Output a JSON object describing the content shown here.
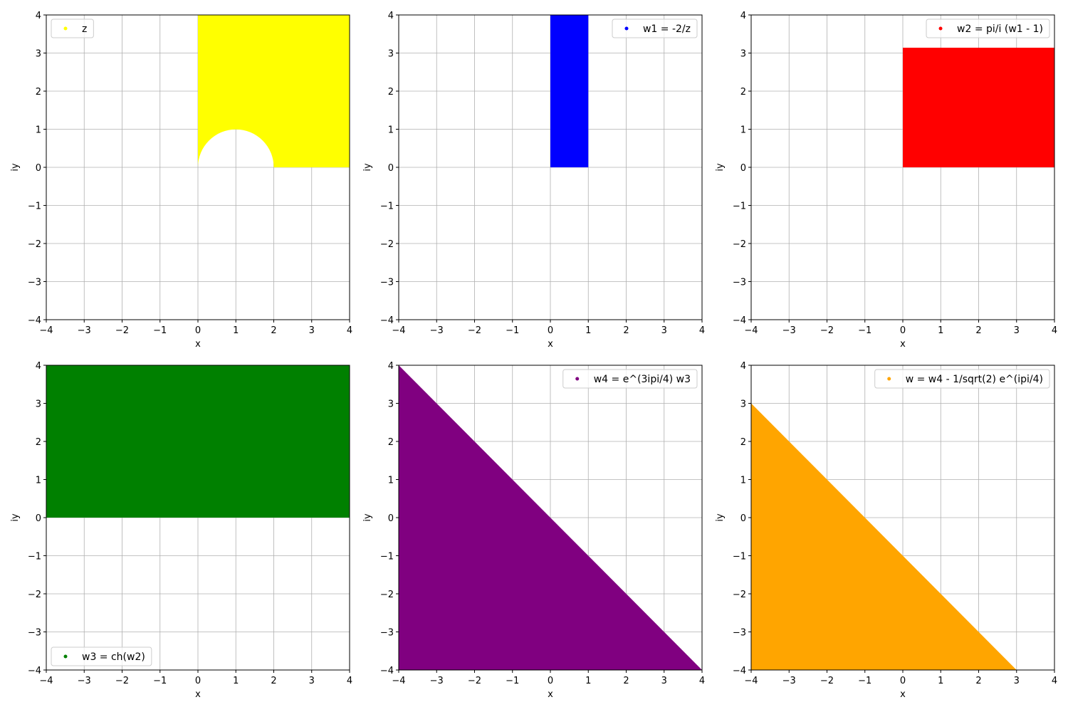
{
  "chart_data": [
    {
      "type": "scatter",
      "series": [
        {
          "name": "z",
          "color": "#ffff00",
          "region": {
            "shape": "halfplane-minus-disk",
            "x_min": 0,
            "y_min": 0,
            "disk_center": [
              1,
              0
            ],
            "disk_radius": 1
          }
        }
      ],
      "xlabel": "x",
      "ylabel": "iy",
      "xlim": [
        -4,
        4
      ],
      "ylim": [
        -4,
        4
      ],
      "xticks": [
        -4,
        -3,
        -2,
        -1,
        0,
        1,
        2,
        3,
        4
      ],
      "yticks": [
        -4,
        -3,
        -2,
        -1,
        0,
        1,
        2,
        3,
        4
      ],
      "grid": true,
      "legend_position": "upper left"
    },
    {
      "type": "scatter",
      "series": [
        {
          "name": "w1 = -2/z",
          "color": "#0000ff",
          "region": {
            "shape": "rectangle",
            "x": [
              0,
              1
            ],
            "y": [
              0,
              4
            ]
          }
        }
      ],
      "xlabel": "x",
      "ylabel": "iy",
      "xlim": [
        -4,
        4
      ],
      "ylim": [
        -4,
        4
      ],
      "xticks": [
        -4,
        -3,
        -2,
        -1,
        0,
        1,
        2,
        3,
        4
      ],
      "yticks": [
        -4,
        -3,
        -2,
        -1,
        0,
        1,
        2,
        3,
        4
      ],
      "grid": true,
      "legend_position": "upper right"
    },
    {
      "type": "scatter",
      "series": [
        {
          "name": "w2 = pi/i (w1 - 1)",
          "color": "#ff0000",
          "region": {
            "shape": "rectangle",
            "x": [
              0,
              4
            ],
            "y": [
              0,
              3.14
            ]
          }
        }
      ],
      "xlabel": "x",
      "ylabel": "iy",
      "xlim": [
        -4,
        4
      ],
      "ylim": [
        -4,
        4
      ],
      "xticks": [
        -4,
        -3,
        -2,
        -1,
        0,
        1,
        2,
        3,
        4
      ],
      "yticks": [
        -4,
        -3,
        -2,
        -1,
        0,
        1,
        2,
        3,
        4
      ],
      "grid": true,
      "legend_position": "upper right"
    },
    {
      "type": "scatter",
      "series": [
        {
          "name": "w3 = ch(w2)",
          "color": "#008000",
          "region": {
            "shape": "rectangle",
            "x": [
              -4,
              4
            ],
            "y": [
              0,
              4
            ]
          }
        }
      ],
      "xlabel": "x",
      "ylabel": "iy",
      "xlim": [
        -4,
        4
      ],
      "ylim": [
        -4,
        4
      ],
      "xticks": [
        -4,
        -3,
        -2,
        -1,
        0,
        1,
        2,
        3,
        4
      ],
      "yticks": [
        -4,
        -3,
        -2,
        -1,
        0,
        1,
        2,
        3,
        4
      ],
      "grid": true,
      "legend_position": "lower left"
    },
    {
      "type": "scatter",
      "series": [
        {
          "name": "w4 = e^(3ipi/4) w3",
          "color": "#800080",
          "region": {
            "shape": "polygon",
            "points": [
              [
                -4,
                4
              ],
              [
                4,
                -4
              ],
              [
                -4,
                -4
              ]
            ]
          }
        }
      ],
      "xlabel": "x",
      "ylabel": "iy",
      "xlim": [
        -4,
        4
      ],
      "ylim": [
        -4,
        4
      ],
      "xticks": [
        -4,
        -3,
        -2,
        -1,
        0,
        1,
        2,
        3,
        4
      ],
      "yticks": [
        -4,
        -3,
        -2,
        -1,
        0,
        1,
        2,
        3,
        4
      ],
      "grid": true,
      "legend_position": "upper right"
    },
    {
      "type": "scatter",
      "series": [
        {
          "name": "w = w4 - 1/sqrt(2) e^(ipi/4)",
          "color": "#ffa500",
          "region": {
            "shape": "polygon",
            "points": [
              [
                -4,
                3
              ],
              [
                3,
                -4
              ],
              [
                -4,
                -4
              ]
            ]
          }
        }
      ],
      "xlabel": "x",
      "ylabel": "iy",
      "xlim": [
        -4,
        4
      ],
      "ylim": [
        -4,
        4
      ],
      "xticks": [
        -4,
        -3,
        -2,
        -1,
        0,
        1,
        2,
        3,
        4
      ],
      "yticks": [
        -4,
        -3,
        -2,
        -1,
        0,
        1,
        2,
        3,
        4
      ],
      "grid": true,
      "legend_position": "upper right"
    }
  ]
}
